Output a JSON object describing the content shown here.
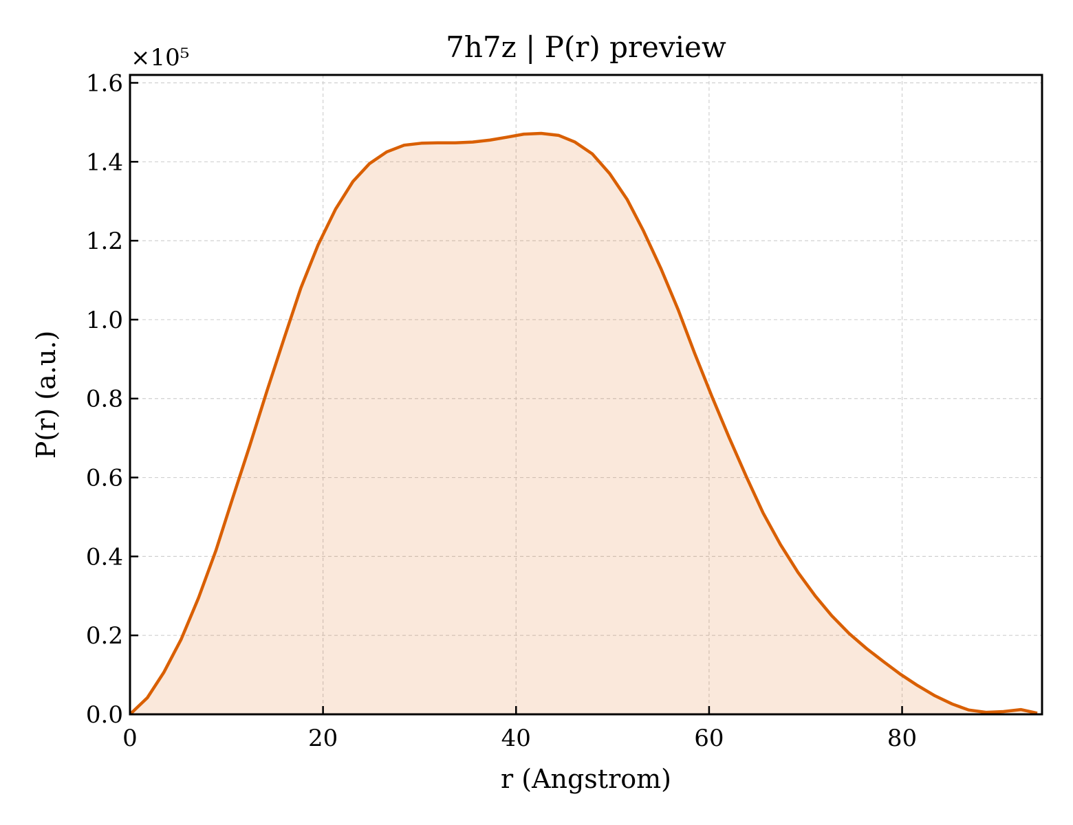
{
  "chart_data": {
    "type": "area",
    "title": "7h7z | P(r) preview",
    "xlabel": "r (Angstrom)",
    "ylabel": "P(r) (a.u.)",
    "y_offset_label": "×10⁵",
    "y_scale": 100000,
    "xlim": [
      0,
      94.5
    ],
    "ylim": [
      0,
      1.62
    ],
    "x_ticks": [
      0,
      20,
      40,
      60,
      80
    ],
    "x_tick_labels": [
      "0",
      "20",
      "40",
      "60",
      "80"
    ],
    "y_ticks": [
      0,
      0.2,
      0.4,
      0.6,
      0.8,
      1.0,
      1.2,
      1.4,
      1.6
    ],
    "y_tick_labels": [
      "0.0",
      "0.2",
      "0.4",
      "0.6",
      "0.8",
      "1.0",
      "1.2",
      "1.4",
      "1.6"
    ],
    "grid": true,
    "line_color": "#d95f02",
    "fill_color": "#d95f02",
    "fill_opacity": 0.14,
    "series": [
      {
        "x": [
          0,
          1.8,
          3.5,
          5.3,
          7.1,
          8.9,
          10.6,
          12.4,
          14.2,
          16.0,
          17.7,
          19.5,
          21.3,
          23.1,
          24.8,
          26.6,
          28.4,
          30.2,
          31.9,
          33.7,
          35.5,
          37.3,
          39.0,
          40.8,
          42.6,
          44.4,
          46.1,
          47.9,
          49.7,
          51.5,
          53.2,
          55.0,
          56.8,
          58.5,
          60.3,
          62.1,
          63.9,
          65.6,
          67.4,
          69.2,
          71.0,
          72.7,
          74.5,
          76.3,
          78.1,
          79.8,
          81.6,
          83.4,
          85.2,
          86.9,
          88.7,
          90.5,
          92.3,
          94.0
        ],
        "values": [
          0.0,
          0.042,
          0.106,
          0.19,
          0.295,
          0.415,
          0.545,
          0.68,
          0.82,
          0.955,
          1.08,
          1.19,
          1.28,
          1.35,
          1.395,
          1.425,
          1.442,
          1.447,
          1.448,
          1.448,
          1.45,
          1.455,
          1.462,
          1.47,
          1.472,
          1.467,
          1.45,
          1.42,
          1.37,
          1.305,
          1.225,
          1.13,
          1.025,
          0.915,
          0.805,
          0.7,
          0.6,
          0.51,
          0.43,
          0.36,
          0.3,
          0.25,
          0.205,
          0.167,
          0.133,
          0.102,
          0.073,
          0.047,
          0.026,
          0.011,
          0.005,
          0.007,
          0.012,
          0.003
        ]
      }
    ]
  }
}
